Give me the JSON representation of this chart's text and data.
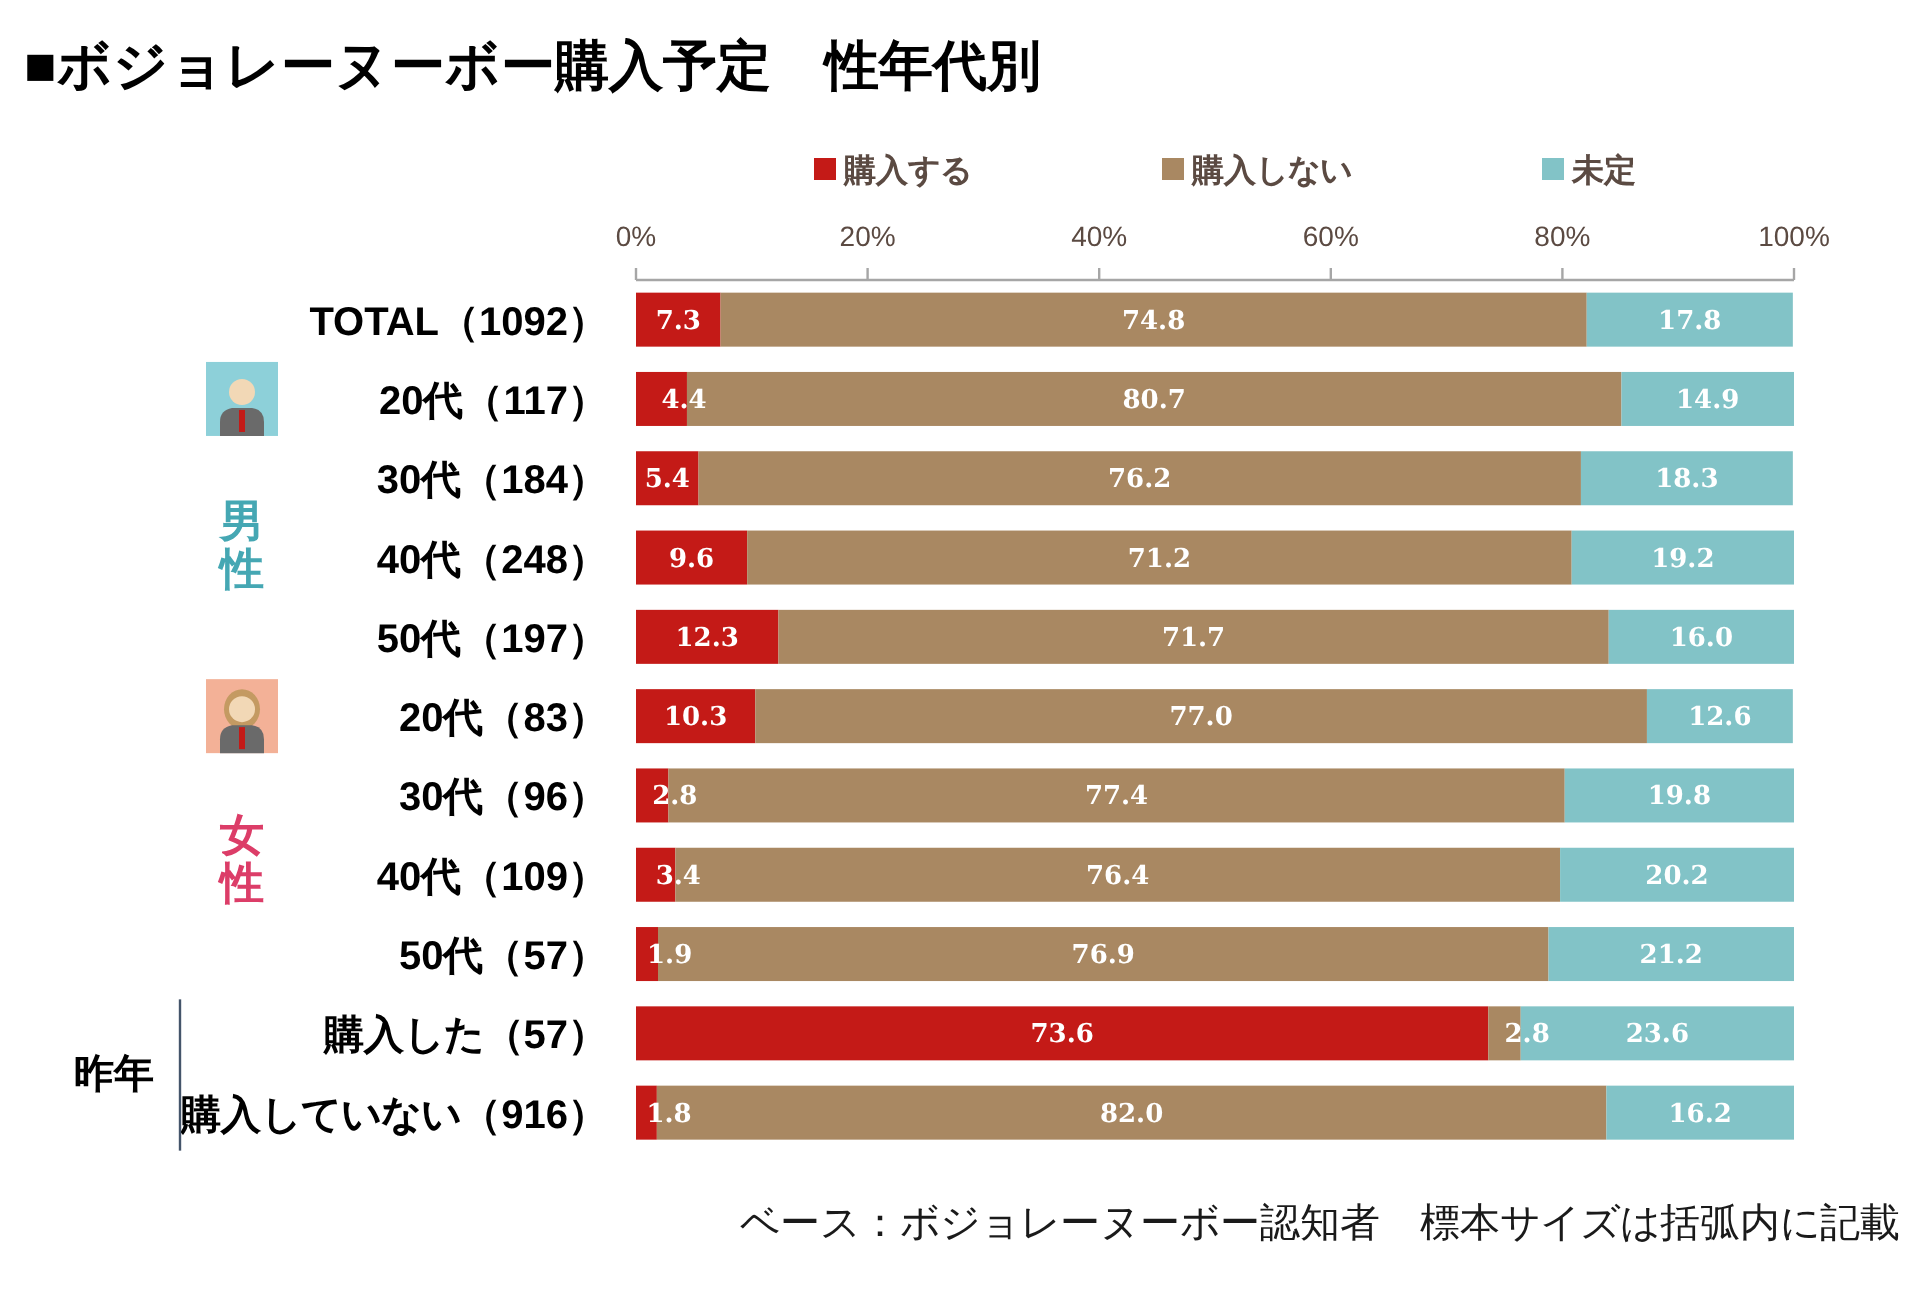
{
  "chart_data": {
    "type": "bar",
    "orientation": "horizontal",
    "stacked": true,
    "title": "■ボジョレーヌーボー購入予定　性年代別",
    "categories": [
      "TOTAL（1092）",
      "20代（117）",
      "30代（184）",
      "40代（248）",
      "50代（197）",
      "20代（83）",
      "30代（96）",
      "40代（109）",
      "50代（57）",
      "購入した（57）",
      "購入していない（916）"
    ],
    "series": [
      {
        "name": "購入する",
        "color": "#c41a17",
        "values": [
          7.3,
          4.4,
          5.4,
          9.6,
          12.3,
          10.3,
          2.8,
          3.4,
          1.9,
          73.6,
          1.8
        ],
        "value_labels": [
          "7.3",
          "4.4",
          "5.4",
          "9.6",
          "12.3",
          "10.3",
          "2.8",
          "3.4",
          "1.9",
          "73.6",
          "1.8"
        ]
      },
      {
        "name": "購入しない",
        "color": "#a98862",
        "values": [
          74.8,
          80.7,
          76.2,
          71.2,
          71.7,
          77.0,
          77.4,
          76.4,
          76.9,
          2.8,
          82.0
        ],
        "value_labels": [
          "74.8",
          "80.7",
          "76.2",
          "71.2",
          "71.7",
          "77.0",
          "77.4",
          "76.4",
          "76.9",
          "2.8",
          "82.0"
        ]
      },
      {
        "name": "未定",
        "color": "#82c3c7",
        "values": [
          17.8,
          14.9,
          18.3,
          19.2,
          16.0,
          12.6,
          19.8,
          20.2,
          21.2,
          23.6,
          16.2
        ],
        "value_labels": [
          "17.8",
          "14.9",
          "18.3",
          "19.2",
          "16.0",
          "12.6",
          "19.8",
          "20.2",
          "21.2",
          "23.6",
          "16.2"
        ]
      }
    ],
    "xlim": [
      0,
      100
    ],
    "xticks": [
      {
        "value": 0,
        "label": "0%"
      },
      {
        "value": 20,
        "label": "20%"
      },
      {
        "value": 40,
        "label": "40%"
      },
      {
        "value": 60,
        "label": "60%"
      },
      {
        "value": 80,
        "label": "80%"
      },
      {
        "value": 100,
        "label": "100%"
      }
    ],
    "legend": "top",
    "annotations": [
      "男性",
      "女性",
      "昨年",
      "ベース：ボジョレーヌーボー認知者　標本サイズは括弧内に記載"
    ]
  }
}
